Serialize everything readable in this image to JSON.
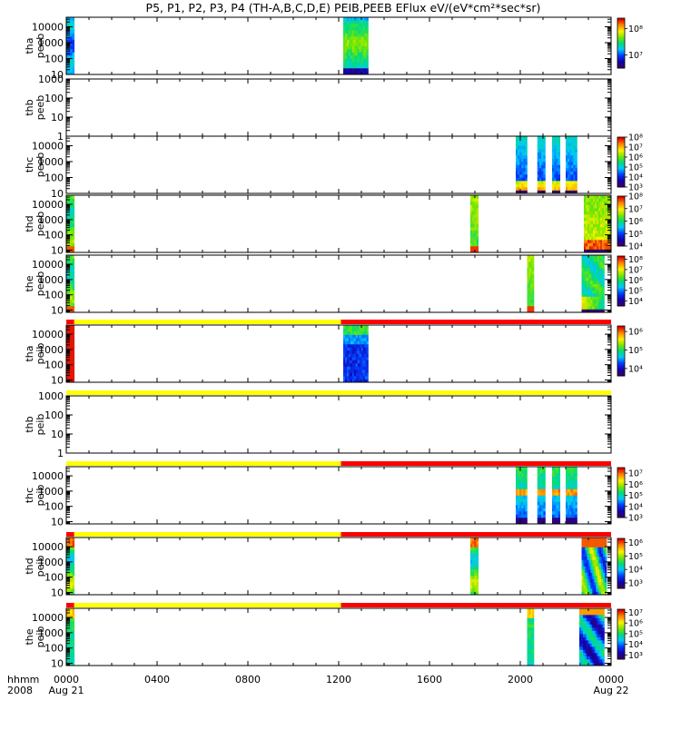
{
  "title": "P5, P1, P2, P3, P4 (TH-A,B,C,D,E) PEIB,PEEB EFlux eV/(eV*cm²*sec*sr)",
  "colors": {
    "state_yellow": "#ffff00",
    "state_red": "#ff0000"
  },
  "chart_data": {
    "type": "heatmap",
    "x_range_hours": [
      0,
      24
    ],
    "x_ticks": [
      {
        "hour": 0,
        "label": "0000"
      },
      {
        "hour": 4,
        "label": "0400"
      },
      {
        "hour": 8,
        "label": "0800"
      },
      {
        "hour": 12,
        "label": "1200"
      },
      {
        "hour": 16,
        "label": "1600"
      },
      {
        "hour": 20,
        "label": "2000"
      },
      {
        "hour": 24,
        "label": "0000"
      }
    ],
    "x_sublabels": [
      {
        "hour": 0,
        "label": "Aug 21"
      },
      {
        "hour": 24,
        "label": "Aug 22"
      }
    ],
    "x_axis_label": "hhmm",
    "x_axis_year": "2008",
    "panels": [
      {
        "name": "tha-peeb",
        "label_line1": "tha",
        "label_line2": "peeb",
        "ylog": [
          1,
          4.6
        ],
        "yticks": [
          "10",
          "100",
          "1000",
          "10000"
        ],
        "ytick_exps": [
          1,
          2,
          3,
          4
        ],
        "colorbar": {
          "range": [
            6.5,
            8.4
          ],
          "ticks": [
            {
              "exp": 7,
              "label": "10⁷"
            },
            {
              "exp": 8,
              "label": "10⁸"
            }
          ]
        },
        "blocks": [
          {
            "start": 0.0,
            "end": 0.35,
            "style": "uniform"
          },
          {
            "start": 12.2,
            "end": 13.3,
            "style": "tha"
          }
        ],
        "state_bar": null
      },
      {
        "name": "thb-peeb",
        "label_line1": "thb",
        "label_line2": "peeb",
        "ylog": [
          0,
          3
        ],
        "yticks": [
          "1",
          "10",
          "100",
          "1000"
        ],
        "ytick_exps": [
          0,
          1,
          2,
          3
        ],
        "colorbar": null,
        "blocks": [],
        "state_bar": null
      },
      {
        "name": "thc-peeb",
        "label_line1": "thc",
        "label_line2": "peeb",
        "ylog": [
          1,
          4.6
        ],
        "yticks": [
          "10",
          "100",
          "1000",
          "10000"
        ],
        "ytick_exps": [
          1,
          2,
          3,
          4
        ],
        "colorbar": {
          "range": [
            3,
            8
          ],
          "ticks": [
            {
              "exp": 3,
              "label": "10³"
            },
            {
              "exp": 4,
              "label": "10⁴"
            },
            {
              "exp": 5,
              "label": "10⁵"
            },
            {
              "exp": 6,
              "label": "10⁶"
            },
            {
              "exp": 7,
              "label": "10⁷"
            },
            {
              "exp": 8,
              "label": "10⁸"
            }
          ]
        },
        "blocks": [
          {
            "start": 19.8,
            "end": 20.3,
            "style": "thc"
          },
          {
            "start": 20.75,
            "end": 21.1,
            "style": "thc"
          },
          {
            "start": 21.4,
            "end": 21.75,
            "style": "thc"
          },
          {
            "start": 22.0,
            "end": 22.5,
            "style": "thc"
          }
        ],
        "state_bar": null
      },
      {
        "name": "thd-peeb",
        "label_line1": "thd",
        "label_line2": "peeb",
        "ylog": [
          0.85,
          4.6
        ],
        "yticks": [
          "10",
          "100",
          "1000",
          "10000"
        ],
        "ytick_exps": [
          1,
          2,
          3,
          4
        ],
        "colorbar": {
          "range": [
            4,
            8
          ],
          "ticks": [
            {
              "exp": 4,
              "label": "10⁴"
            },
            {
              "exp": 5,
              "label": "10⁵"
            },
            {
              "exp": 6,
              "label": "10⁶"
            },
            {
              "exp": 7,
              "label": "10⁷"
            },
            {
              "exp": 8,
              "label": "10⁸"
            }
          ]
        },
        "blocks": [
          {
            "start": 0.0,
            "end": 0.35,
            "style": "edge"
          },
          {
            "start": 17.8,
            "end": 18.15,
            "style": "narrow"
          },
          {
            "start": 22.8,
            "end": 24.0,
            "style": "thd_late"
          }
        ],
        "state_bar": null
      },
      {
        "name": "the-peeb",
        "label_line1": "the",
        "label_line2": "peeb",
        "ylog": [
          0.85,
          4.6
        ],
        "yticks": [
          "10",
          "100",
          "1000",
          "10000"
        ],
        "ytick_exps": [
          1,
          2,
          3,
          4
        ],
        "colorbar": {
          "range": [
            3.5,
            8.3
          ],
          "ticks": [
            {
              "exp": 4,
              "label": "10⁴"
            },
            {
              "exp": 5,
              "label": "10⁵"
            },
            {
              "exp": 6,
              "label": "10⁶"
            },
            {
              "exp": 7,
              "label": "10⁷"
            },
            {
              "exp": 8,
              "label": "10⁸"
            }
          ]
        },
        "blocks": [
          {
            "start": 0.0,
            "end": 0.35,
            "style": "edge"
          },
          {
            "start": 20.3,
            "end": 20.6,
            "style": "narrow"
          },
          {
            "start": 22.7,
            "end": 23.7,
            "style": "the_late"
          }
        ],
        "state_bar": null
      },
      {
        "name": "tha-peib",
        "label_line1": "tha",
        "label_line2": "peib",
        "ylog": [
          0.85,
          4.6
        ],
        "yticks": [
          "10",
          "100",
          "1000",
          "10000"
        ],
        "ytick_exps": [
          1,
          2,
          3,
          4
        ],
        "colorbar": {
          "range": [
            3.6,
            6.3
          ],
          "ticks": [
            {
              "exp": 4,
              "label": "10⁴"
            },
            {
              "exp": 5,
              "label": "10⁵"
            },
            {
              "exp": 6,
              "label": "10⁶"
            }
          ]
        },
        "blocks": [
          {
            "start": 0.0,
            "end": 0.35,
            "style": "red"
          },
          {
            "start": 12.2,
            "end": 13.3,
            "style": "ion_a"
          }
        ],
        "state_bar": [
          {
            "start": 0,
            "end": 0.35,
            "color": "state_red"
          },
          {
            "start": 0.35,
            "end": 12.1,
            "color": "state_yellow"
          },
          {
            "start": 12.1,
            "end": 24,
            "color": "state_red"
          }
        ]
      },
      {
        "name": "thb-peib",
        "label_line1": "thb",
        "label_line2": "peib",
        "ylog": [
          0,
          3
        ],
        "yticks": [
          "1",
          "10",
          "100",
          "1000"
        ],
        "ytick_exps": [
          0,
          1,
          2,
          3
        ],
        "colorbar": null,
        "blocks": [],
        "state_bar": [
          {
            "start": 0,
            "end": 24,
            "color": "state_yellow"
          }
        ]
      },
      {
        "name": "thc-peib",
        "label_line1": "thc",
        "label_line2": "peib",
        "ylog": [
          0.85,
          4.6
        ],
        "yticks": [
          "10",
          "100",
          "1000",
          "10000"
        ],
        "ytick_exps": [
          1,
          2,
          3,
          4
        ],
        "colorbar": {
          "range": [
            3,
            7.5
          ],
          "ticks": [
            {
              "exp": 3,
              "label": "10³"
            },
            {
              "exp": 4,
              "label": "10⁴"
            },
            {
              "exp": 5,
              "label": "10⁵"
            },
            {
              "exp": 6,
              "label": "10⁶"
            },
            {
              "exp": 7,
              "label": "10⁷"
            }
          ]
        },
        "blocks": [
          {
            "start": 19.8,
            "end": 20.3,
            "style": "ion_c"
          },
          {
            "start": 20.75,
            "end": 21.1,
            "style": "ion_c"
          },
          {
            "start": 21.4,
            "end": 21.75,
            "style": "ion_c"
          },
          {
            "start": 22.0,
            "end": 22.5,
            "style": "ion_c"
          }
        ],
        "state_bar": [
          {
            "start": 0,
            "end": 12.1,
            "color": "state_yellow"
          },
          {
            "start": 12.1,
            "end": 24,
            "color": "state_red"
          }
        ]
      },
      {
        "name": "thd-peib",
        "label_line1": "thd",
        "label_line2": "peib",
        "ylog": [
          0.85,
          4.6
        ],
        "yticks": [
          "10",
          "100",
          "1000",
          "10000"
        ],
        "ytick_exps": [
          1,
          2,
          3,
          4
        ],
        "colorbar": {
          "range": [
            2.6,
            6.3
          ],
          "ticks": [
            {
              "exp": 3,
              "label": "10³"
            },
            {
              "exp": 4,
              "label": "10⁴"
            },
            {
              "exp": 5,
              "label": "10⁵"
            },
            {
              "exp": 6,
              "label": "10⁶"
            }
          ]
        },
        "blocks": [
          {
            "start": 0.0,
            "end": 0.35,
            "style": "ion_d"
          },
          {
            "start": 17.8,
            "end": 18.15,
            "style": "ion_d"
          },
          {
            "start": 22.7,
            "end": 23.8,
            "style": "ion_d_late"
          }
        ],
        "state_bar": [
          {
            "start": 0,
            "end": 0.35,
            "color": "state_red"
          },
          {
            "start": 0.35,
            "end": 12.1,
            "color": "state_yellow"
          },
          {
            "start": 12.1,
            "end": 24,
            "color": "state_red"
          }
        ]
      },
      {
        "name": "the-peib",
        "label_line1": "the",
        "label_line2": "peib",
        "ylog": [
          0.85,
          4.6
        ],
        "yticks": [
          "10",
          "100",
          "1000",
          "10000"
        ],
        "ytick_exps": [
          1,
          2,
          3,
          4
        ],
        "colorbar": {
          "range": [
            2.6,
            7.3
          ],
          "ticks": [
            {
              "exp": 3,
              "label": "10³"
            },
            {
              "exp": 4,
              "label": "10⁴"
            },
            {
              "exp": 5,
              "label": "10⁵"
            },
            {
              "exp": 6,
              "label": "10⁶"
            },
            {
              "exp": 7,
              "label": "10⁷"
            }
          ]
        },
        "blocks": [
          {
            "start": 0.0,
            "end": 0.35,
            "style": "ion_e"
          },
          {
            "start": 20.3,
            "end": 20.6,
            "style": "ion_e"
          },
          {
            "start": 22.6,
            "end": 23.7,
            "style": "ion_e_late"
          }
        ],
        "state_bar": [
          {
            "start": 0,
            "end": 0.35,
            "color": "state_red"
          },
          {
            "start": 0.35,
            "end": 12.1,
            "color": "state_yellow"
          },
          {
            "start": 12.1,
            "end": 24,
            "color": "state_red"
          }
        ]
      }
    ]
  }
}
